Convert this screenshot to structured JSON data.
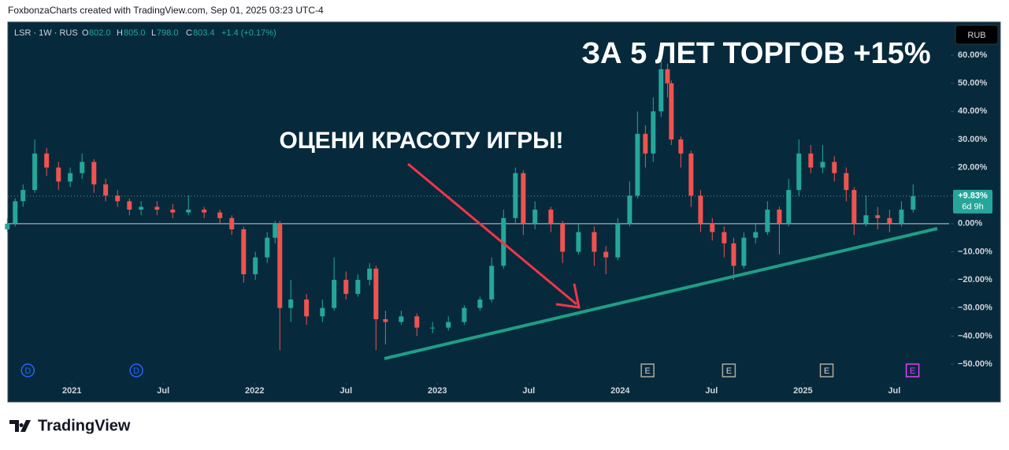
{
  "header": {
    "attribution": "FoxbonzaCharts created with TradingView.com, Sep 01, 2025 03:23 UTC-4"
  },
  "legend": {
    "symbol": "LSR · 1W · RUS",
    "open_key": "O",
    "open": "802.0",
    "high_key": "H",
    "high": "805.0",
    "low_key": "L",
    "low": "798.0",
    "close_key": "C",
    "close": "803.4",
    "change": "+1.4 (+0.17%)"
  },
  "currency": "RUB",
  "footer": {
    "logo": "TradingView"
  },
  "chart_data": {
    "type": "candlestick",
    "annotations": [
      "ЗА 5 ЛЕТ ТОРГОВ +15%",
      "ОЦЕНИ КРАСОТУ ИГРЫ!"
    ],
    "up_color": "#26a69a",
    "down_color": "#ef5350",
    "x": [
      2020.647,
      2020.69,
      2020.733,
      2020.797,
      2020.862,
      2020.927,
      2020.991,
      2021.056,
      2021.121,
      2021.185,
      2021.25,
      2021.315,
      2021.379,
      2021.466,
      2021.552,
      2021.638,
      2021.724,
      2021.81,
      2021.875,
      2021.94,
      2022.004,
      2022.069,
      2022.112,
      2022.138,
      2022.198,
      2022.284,
      2022.371,
      2022.435,
      2022.5,
      2022.565,
      2022.629,
      2022.664,
      2022.716,
      2022.802,
      2022.888,
      2022.974,
      2023.06,
      2023.147,
      2023.233,
      2023.297,
      2023.362,
      2023.427,
      2023.47,
      2023.534,
      2023.621,
      2023.685,
      2023.772,
      2023.858,
      2023.922,
      2023.987,
      2024.052,
      2024.095,
      2024.138,
      2024.181,
      2024.224,
      2024.259,
      2024.28,
      2024.332,
      2024.388,
      2024.44,
      2024.504,
      2024.569,
      2024.621,
      2024.677,
      2024.741,
      2024.806,
      2024.871,
      2024.922,
      2024.978,
      2025.043,
      2025.108,
      2025.172,
      2025.237,
      2025.28,
      2025.345,
      2025.409,
      2025.474,
      2025.539,
      2025.603
    ],
    "open": [
      -2,
      0,
      8,
      12,
      25,
      20,
      15,
      18,
      22,
      14,
      10,
      8,
      5,
      6,
      5,
      4,
      5,
      4,
      2,
      -2,
      -18,
      -12,
      -5,
      0,
      -30,
      -27,
      -33,
      -30,
      -20,
      -25,
      -20,
      -16,
      -34,
      -35,
      -33,
      -37,
      -37,
      -35,
      -30,
      -27,
      -15,
      2,
      18,
      0,
      5,
      0,
      -10,
      -3,
      -10,
      -12,
      0,
      10,
      32,
      25,
      40,
      55,
      50,
      30,
      25,
      10,
      0,
      -3,
      -7,
      -15,
      -5,
      -3,
      5,
      0,
      12,
      25,
      20,
      22,
      18,
      12,
      0,
      3,
      2,
      0,
      5
    ],
    "high": [
      2,
      9,
      14,
      30,
      27,
      22,
      20,
      25,
      23,
      16,
      12,
      9,
      8,
      8,
      7,
      10,
      6,
      5,
      3,
      -1,
      -10,
      -3,
      1,
      1,
      -20,
      -25,
      -27,
      -12,
      -17,
      -18,
      -14,
      -15,
      -31,
      -31,
      -32,
      -35,
      -33,
      -29,
      -26,
      -12,
      5,
      20,
      19,
      8,
      6,
      1,
      0,
      -1,
      -8,
      2,
      15,
      40,
      35,
      45,
      58,
      57,
      51,
      31,
      26,
      12,
      2,
      -1,
      -5,
      -3,
      0,
      8,
      6,
      16,
      30,
      28,
      28,
      24,
      20,
      13,
      10,
      6,
      5,
      8,
      14
    ],
    "low": [
      -3,
      -1,
      6,
      11,
      17,
      12,
      13,
      16,
      11,
      8,
      6,
      3,
      3,
      3,
      2,
      3,
      2,
      0,
      -4,
      -21,
      -20,
      -14,
      -7,
      -45,
      -35,
      -36,
      -35,
      -31,
      -27,
      -26,
      -22,
      -45,
      -43,
      -36,
      -40,
      -39,
      -38,
      -36,
      -31,
      -28,
      -16,
      0,
      -4,
      -2,
      -3,
      -14,
      -11,
      -15,
      -18,
      -13,
      -1,
      9,
      20,
      22,
      38,
      45,
      28,
      20,
      6,
      -3,
      -6,
      -12,
      -20,
      -16,
      -7,
      -4,
      -11,
      -1,
      10,
      18,
      18,
      15,
      8,
      -4,
      -1,
      -2,
      -3,
      -1,
      4
    ],
    "close": [
      0,
      8,
      12,
      25,
      20,
      15,
      18,
      22,
      14,
      10,
      8,
      5,
      6,
      5,
      4,
      5,
      4,
      2,
      -2,
      -18,
      -12,
      -5,
      0,
      -30,
      -27,
      -33,
      -30,
      -20,
      -25,
      -20,
      -16,
      -34,
      -35,
      -33,
      -37,
      -37,
      -35,
      -30,
      -27,
      -15,
      2,
      18,
      0,
      5,
      0,
      -10,
      -3,
      -10,
      -12,
      0,
      10,
      32,
      25,
      40,
      55,
      50,
      30,
      25,
      10,
      0,
      -3,
      -7,
      -15,
      -5,
      -3,
      5,
      0,
      12,
      25,
      20,
      22,
      18,
      12,
      0,
      3,
      2,
      0,
      5,
      9.83
    ],
    "last_label": {
      "value": 9.83,
      "label": "+9.83%"
    },
    "countdown": "6d 9h",
    "events": [
      {
        "x": 2020.759,
        "label": "D"
      },
      {
        "x": 2021.353,
        "label": "D"
      },
      {
        "x": 2024.15,
        "label": "E"
      },
      {
        "x": 2024.595,
        "label": "E"
      },
      {
        "x": 2025.13,
        "label": "E"
      },
      {
        "x": 2025.6,
        "label": "E"
      }
    ],
    "xlim": [
      2020.65,
      2025.8
    ],
    "xticks": [
      2021,
      {
        "value": 2021.5,
        "label": "Jul"
      },
      2022,
      {
        "value": 2022.5,
        "label": "Jul"
      },
      2023,
      {
        "value": 2023.5,
        "label": "Jul"
      },
      2024,
      {
        "value": 2024.5,
        "label": "Jul"
      },
      2025,
      {
        "value": 2025.5,
        "label": "Jul"
      }
    ],
    "ylim": [
      -55.05,
      71.8
    ],
    "yticks": [
      {
        "value": 60,
        "label": "60.00%"
      },
      {
        "value": 50,
        "label": "50.00%"
      },
      {
        "value": 40,
        "label": "40.00%"
      },
      {
        "value": 30,
        "label": "30.00%"
      },
      {
        "value": 20,
        "label": "20.00%"
      },
      {
        "value": 10,
        "label": "10.00%"
      },
      {
        "value": 0,
        "label": "0.00%"
      },
      {
        "value": -10,
        "label": "−10.00%"
      },
      {
        "value": -20,
        "label": "−20.00%"
      },
      {
        "value": -30,
        "label": "−30.00%"
      },
      {
        "value": -40,
        "label": "−40.00%"
      },
      {
        "value": -50,
        "label": "−50.00%"
      }
    ],
    "grid": false
  }
}
